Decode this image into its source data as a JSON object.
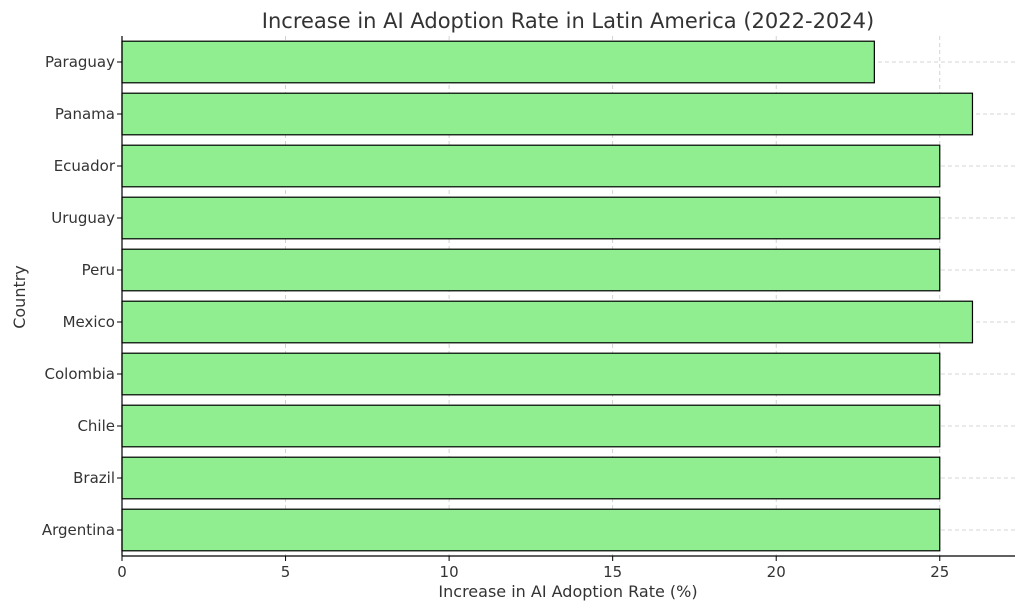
{
  "chart_data": {
    "type": "bar",
    "orientation": "horizontal",
    "title": "Increase in AI Adoption Rate in Latin America (2022-2024)",
    "xlabel": "Increase in AI Adoption Rate (%)",
    "ylabel": "Country",
    "categories": [
      "Argentina",
      "Brazil",
      "Chile",
      "Colombia",
      "Mexico",
      "Peru",
      "Uruguay",
      "Ecuador",
      "Panama",
      "Paraguay"
    ],
    "values": [
      25,
      25,
      25,
      25,
      26,
      25,
      25,
      25,
      26,
      23
    ],
    "xlim": [
      0,
      27.3
    ],
    "xticks": [
      0,
      5,
      10,
      15,
      20,
      25
    ],
    "grid": true,
    "bar_color": "#90EE90",
    "edge_color": "#000000"
  }
}
